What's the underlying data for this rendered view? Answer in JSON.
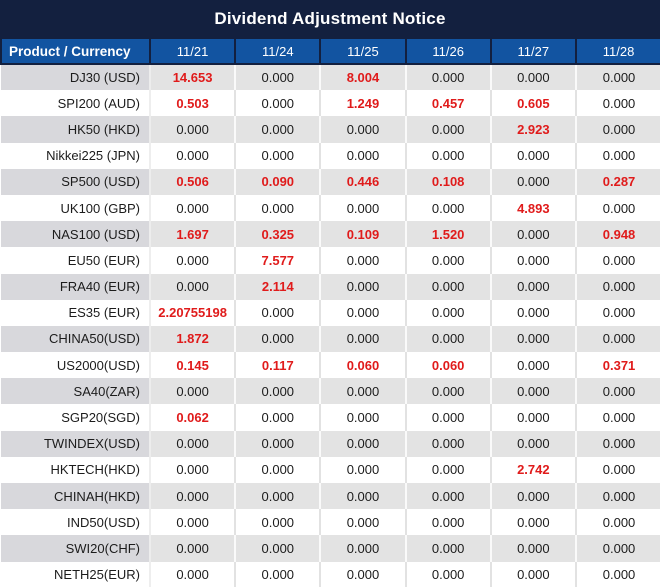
{
  "title": "Dividend Adjustment Notice",
  "colors": {
    "title_bg": "#13203f",
    "header_bg": "#1254a1",
    "header_border": "#13203f",
    "highlight_red": "#e01b1b",
    "gray_product": "#d8d8dc",
    "gray_value": "#e3e3e3",
    "text_dark": "#1c1c1c"
  },
  "table": {
    "product_header": "Product / Currency",
    "date_headers": [
      "11/21",
      "11/24",
      "11/25",
      "11/26",
      "11/27",
      "11/28"
    ],
    "rows": [
      {
        "product": "DJ30 (USD)",
        "values": [
          "14.653",
          "0.000",
          "8.004",
          "0.000",
          "0.000",
          "0.000"
        ]
      },
      {
        "product": "SPI200 (AUD)",
        "values": [
          "0.503",
          "0.000",
          "1.249",
          "0.457",
          "0.605",
          "0.000"
        ]
      },
      {
        "product": "HK50 (HKD)",
        "values": [
          "0.000",
          "0.000",
          "0.000",
          "0.000",
          "2.923",
          "0.000"
        ]
      },
      {
        "product": "Nikkei225 (JPN)",
        "values": [
          "0.000",
          "0.000",
          "0.000",
          "0.000",
          "0.000",
          "0.000"
        ]
      },
      {
        "product": "SP500 (USD)",
        "values": [
          "0.506",
          "0.090",
          "0.446",
          "0.108",
          "0.000",
          "0.287"
        ]
      },
      {
        "product": "UK100 (GBP)",
        "values": [
          "0.000",
          "0.000",
          "0.000",
          "0.000",
          "4.893",
          "0.000"
        ]
      },
      {
        "product": "NAS100 (USD)",
        "values": [
          "1.697",
          "0.325",
          "0.109",
          "1.520",
          "0.000",
          "0.948"
        ]
      },
      {
        "product": "EU50 (EUR)",
        "values": [
          "0.000",
          "7.577",
          "0.000",
          "0.000",
          "0.000",
          "0.000"
        ]
      },
      {
        "product": "FRA40 (EUR)",
        "values": [
          "0.000",
          "2.114",
          "0.000",
          "0.000",
          "0.000",
          "0.000"
        ]
      },
      {
        "product": "ES35 (EUR)",
        "values": [
          "2.20755198",
          "0.000",
          "0.000",
          "0.000",
          "0.000",
          "0.000"
        ]
      },
      {
        "product": "CHINA50(USD)",
        "values": [
          "1.872",
          "0.000",
          "0.000",
          "0.000",
          "0.000",
          "0.000"
        ]
      },
      {
        "product": "US2000(USD)",
        "values": [
          "0.145",
          "0.117",
          "0.060",
          "0.060",
          "0.000",
          "0.371"
        ]
      },
      {
        "product": "SA40(ZAR)",
        "values": [
          "0.000",
          "0.000",
          "0.000",
          "0.000",
          "0.000",
          "0.000"
        ]
      },
      {
        "product": "SGP20(SGD)",
        "values": [
          "0.062",
          "0.000",
          "0.000",
          "0.000",
          "0.000",
          "0.000"
        ]
      },
      {
        "product": "TWINDEX(USD)",
        "values": [
          "0.000",
          "0.000",
          "0.000",
          "0.000",
          "0.000",
          "0.000"
        ]
      },
      {
        "product": "HKTECH(HKD)",
        "values": [
          "0.000",
          "0.000",
          "0.000",
          "0.000",
          "2.742",
          "0.000"
        ]
      },
      {
        "product": "CHINAH(HKD)",
        "values": [
          "0.000",
          "0.000",
          "0.000",
          "0.000",
          "0.000",
          "0.000"
        ]
      },
      {
        "product": "IND50(USD)",
        "values": [
          "0.000",
          "0.000",
          "0.000",
          "0.000",
          "0.000",
          "0.000"
        ]
      },
      {
        "product": "SWI20(CHF)",
        "values": [
          "0.000",
          "0.000",
          "0.000",
          "0.000",
          "0.000",
          "0.000"
        ]
      },
      {
        "product": "NETH25(EUR)",
        "values": [
          "0.000",
          "0.000",
          "0.000",
          "0.000",
          "0.000",
          "0.000"
        ]
      }
    ]
  }
}
